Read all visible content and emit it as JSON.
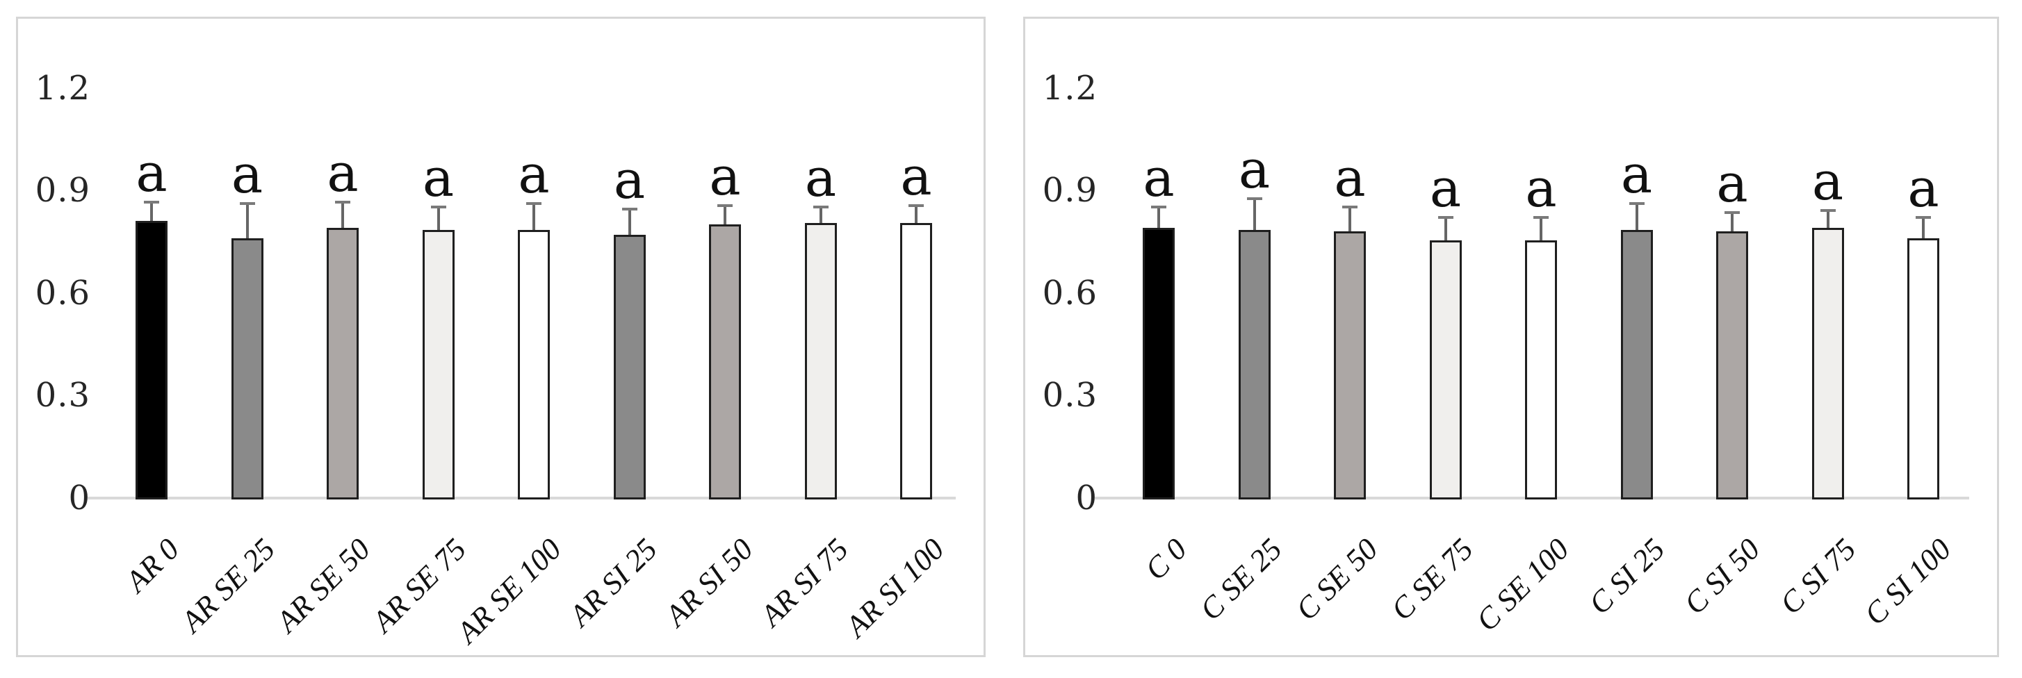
{
  "figure": {
    "background": "#ffffff",
    "panel_border_color": "#d6d6d6",
    "axis_line_color": "#d9d9d9",
    "bar_border_color": "#1f1f1f",
    "error_bar_color": "#666666",
    "text_color": "#262626"
  },
  "chart_data": [
    {
      "type": "bar",
      "panel": "left",
      "title": "",
      "xlabel": "",
      "ylabel": "",
      "grid": false,
      "legend": null,
      "ylim": [
        0,
        1.2
      ],
      "ytick_values": [
        0,
        0.3,
        0.6,
        0.9,
        1.2
      ],
      "ytick_labels": [
        "0",
        "0.3",
        "0.6",
        "0.9",
        "1.2"
      ],
      "categories": [
        "AR 0",
        "AR SE 25",
        "AR SE 50",
        "AR SE 75",
        "AR SE 100",
        "AR SI 25",
        "AR SI 50",
        "AR SI 75",
        "AR SI 100"
      ],
      "values": [
        0.81,
        0.76,
        0.79,
        0.785,
        0.785,
        0.77,
        0.8,
        0.805,
        0.805
      ],
      "error_top": [
        0.87,
        0.865,
        0.87,
        0.855,
        0.865,
        0.85,
        0.86,
        0.855,
        0.86
      ],
      "sig_labels": [
        "a",
        "a",
        "a",
        "a",
        "a",
        "a",
        "a",
        "a",
        "a"
      ],
      "bar_colors": [
        "#000000",
        "#8a8a8a",
        "#aca7a5",
        "#f0efed",
        "#ffffff",
        "#8a8a8a",
        "#aca7a5",
        "#f0efed",
        "#ffffff"
      ]
    },
    {
      "type": "bar",
      "panel": "right",
      "title": "",
      "xlabel": "",
      "ylabel": "",
      "grid": false,
      "legend": null,
      "ylim": [
        0,
        1.2
      ],
      "ytick_values": [
        0,
        0.3,
        0.6,
        0.9,
        1.2
      ],
      "ytick_labels": [
        "0",
        "0.3",
        "0.6",
        "0.9",
        "1.2"
      ],
      "categories": [
        "C 0",
        "C SE 25",
        "C SE 50",
        "C SE 75",
        "C SE 100",
        "C SI 25",
        "C SI 50",
        "C SI 75",
        "C SI 100"
      ],
      "values": [
        0.79,
        0.785,
        0.78,
        0.755,
        0.755,
        0.785,
        0.78,
        0.79,
        0.76
      ],
      "error_top": [
        0.855,
        0.88,
        0.855,
        0.825,
        0.825,
        0.865,
        0.84,
        0.845,
        0.825
      ],
      "sig_labels": [
        "a",
        "a",
        "a",
        "a",
        "a",
        "a",
        "a",
        "a",
        "a"
      ],
      "bar_colors": [
        "#000000",
        "#8a8a8a",
        "#aca7a5",
        "#f0efed",
        "#ffffff",
        "#8a8a8a",
        "#aca7a5",
        "#f0efed",
        "#ffffff"
      ]
    }
  ]
}
